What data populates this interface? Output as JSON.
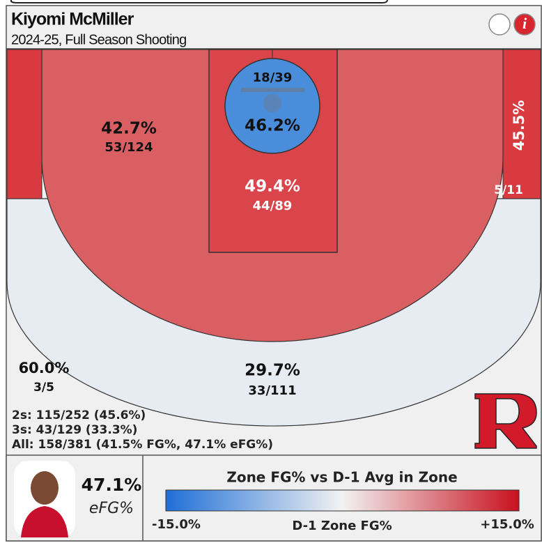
{
  "header": {
    "title": "Kiyomi McMiller",
    "subtitle": "2024-25, Full Season Shooting"
  },
  "zones": {
    "left_midrange": {
      "pct": "42.7%",
      "made_att": "53/124"
    },
    "rim": {
      "made_att": "18/39",
      "pct": "46.2%"
    },
    "paint": {
      "pct": "49.4%",
      "made_att": "44/89"
    },
    "right_corner_three": {
      "pct": "45.5%",
      "made_att": "5/11"
    },
    "long_three": {
      "pct": "60.0%",
      "made_att": "3/5"
    },
    "above_break_three": {
      "pct": "29.7%",
      "made_att": "33/111"
    }
  },
  "summary": [
    "2s: 115/252 (45.6%)",
    "3s: 43/129 (33.3%)",
    "All: 158/381 (41.5% FG%, 47.1% eFG%)"
  ],
  "footer": {
    "efg_value": "47.1%",
    "efg_label": "eFG%",
    "legend": {
      "title": "Zone FG% vs D-1 Avg in Zone",
      "min_label": "-15.0%",
      "center_label": "D-1 Zone FG%",
      "max_label": "+15.0%"
    }
  }
}
